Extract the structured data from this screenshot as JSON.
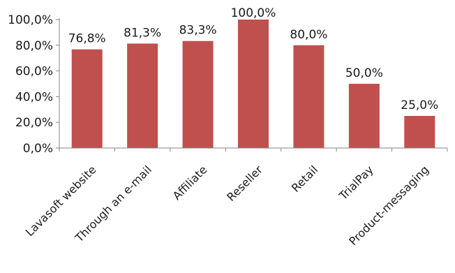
{
  "chart_data": {
    "type": "bar",
    "title": "",
    "xlabel": "",
    "ylabel": "",
    "categories": [
      "Lavasoft website",
      "Through an e-mail",
      "Affiliate",
      "Reseller",
      "Retail",
      "TrialPay",
      "Product-messaging"
    ],
    "values": [
      76.8,
      81.3,
      83.3,
      100.0,
      80.0,
      50.0,
      25.0
    ],
    "data_labels": [
      "76,8%",
      "81,3%",
      "83,3%",
      "100,0%",
      "80,0%",
      "50,0%",
      "25,0%"
    ],
    "ylim": [
      0,
      100
    ],
    "yticks": [
      0,
      20,
      40,
      60,
      80,
      100
    ],
    "ytick_labels": [
      "0,0%",
      "20,0%",
      "40,0%",
      "60,0%",
      "80,0%",
      "100,0%"
    ],
    "grid": false,
    "legend": "none",
    "bar_color": "#C0504D",
    "axis_color": "#868686"
  }
}
